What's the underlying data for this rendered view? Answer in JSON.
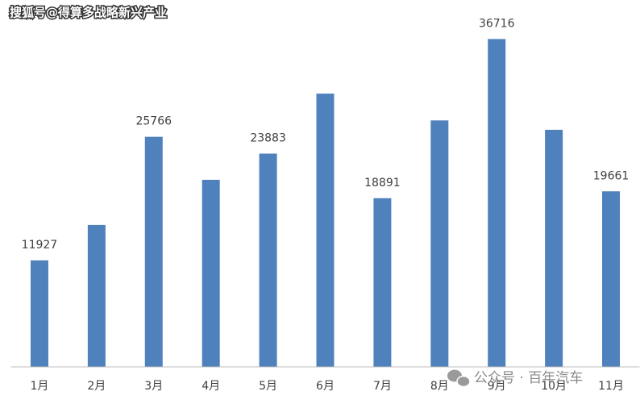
{
  "chart_data": {
    "type": "bar",
    "categories": [
      "1月",
      "2月",
      "3月",
      "4月",
      "5月",
      "6月",
      "7月",
      "8月",
      "9月",
      "10月",
      "11月"
    ],
    "values": [
      11927,
      15900,
      25766,
      20950,
      23883,
      30600,
      18891,
      27600,
      36716,
      26550,
      19661
    ],
    "value_labels": [
      "11927",
      null,
      "25766",
      null,
      "23883",
      null,
      "18891",
      null,
      "36716",
      null,
      "19661"
    ],
    "color": "#4f81bd",
    "ylim": [
      0,
      40000
    ],
    "watermarks": [
      "搜狐号@得算多战略新兴产业",
      "公众号 · 百年汽车"
    ]
  }
}
